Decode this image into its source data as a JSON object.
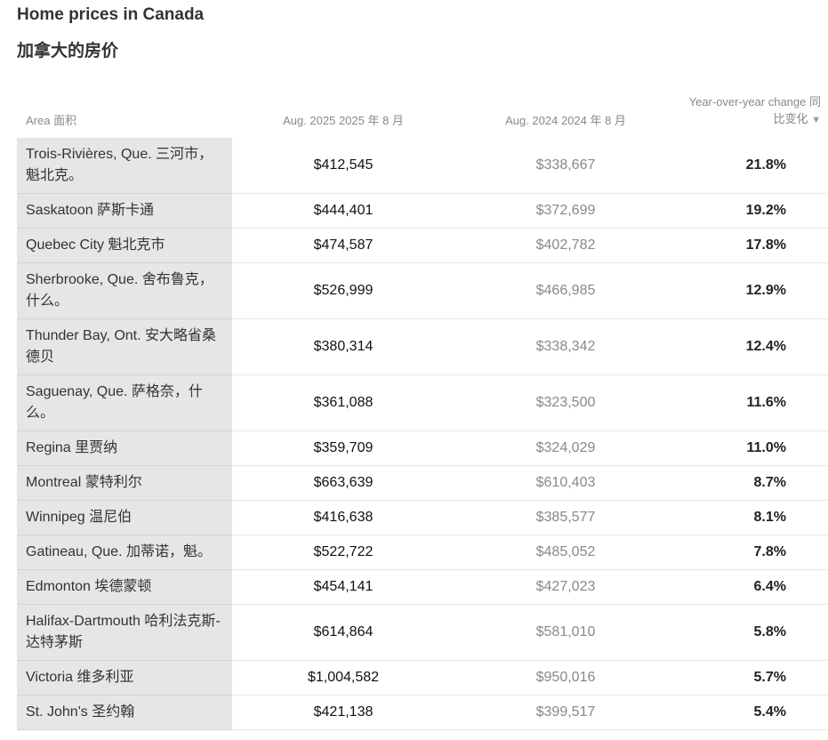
{
  "header": {
    "title": "Home prices in Canada",
    "subtitle": "加拿大的房价"
  },
  "chart_data": {
    "type": "table",
    "columns": [
      "Area 面积",
      "Aug. 2025  2025 年 8 月",
      "Aug. 2024  2024 年 8 月",
      "Year-over-year change  同比变化"
    ],
    "sort": {
      "column": 3,
      "direction": "descending",
      "icon": "triangle-down-icon"
    },
    "rows": [
      [
        "Trois-Rivières, Que.  三河市，魁北克。",
        "$412,545",
        "$338,667",
        "21.8%"
      ],
      [
        "Saskatoon  萨斯卡通",
        "$444,401",
        "$372,699",
        "19.2%"
      ],
      [
        "Quebec City  魁北克市",
        "$474,587",
        "$402,782",
        "17.8%"
      ],
      [
        "Sherbrooke, Que.  舍布鲁克，什么。",
        "$526,999",
        "$466,985",
        "12.9%"
      ],
      [
        "Thunder Bay, Ont.  安大略省桑德贝",
        "$380,314",
        "$338,342",
        "12.4%"
      ],
      [
        "Saguenay, Que.  萨格奈，什么。",
        "$361,088",
        "$323,500",
        "11.6%"
      ],
      [
        "Regina  里贾纳",
        "$359,709",
        "$324,029",
        "11.0%"
      ],
      [
        "Montreal  蒙特利尔",
        "$663,639",
        "$610,403",
        "8.7%"
      ],
      [
        "Winnipeg  温尼伯",
        "$416,638",
        "$385,577",
        "8.1%"
      ],
      [
        "Gatineau, Que.  加蒂诺，魁。",
        "$522,722",
        "$485,052",
        "7.8%"
      ],
      [
        "Edmonton  埃德蒙顿",
        "$454,141",
        "$427,023",
        "6.4%"
      ],
      [
        "Halifax-Dartmouth  哈利法克斯-达特茅斯",
        "$614,864",
        "$581,010",
        "5.8%"
      ],
      [
        "Victoria  维多利亚",
        "$1,004,582",
        "$950,016",
        "5.7%"
      ],
      [
        "St. John's  圣约翰",
        "$421,138",
        "$399,517",
        "5.4%"
      ]
    ]
  }
}
